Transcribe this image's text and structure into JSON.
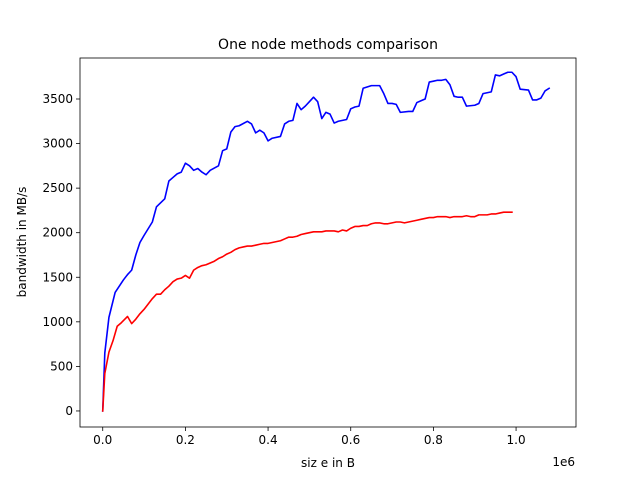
{
  "chart_data": {
    "type": "line",
    "title": "One node methods comparison",
    "xlabel": "siz e in B",
    "ylabel": "bandwidth in MB/s",
    "x_offset_text": "1e6",
    "xlim": [
      -0.055,
      1.145
    ],
    "ylim": [
      -180,
      3960
    ],
    "x_ticks": [
      0.0,
      0.2,
      0.4,
      0.6,
      0.8,
      1.0
    ],
    "x_tick_labels": [
      "0.0",
      "0.2",
      "0.4",
      "0.6",
      "0.8",
      "1.0"
    ],
    "y_ticks": [
      0,
      500,
      1000,
      1500,
      2000,
      2500,
      3000,
      3500
    ],
    "y_tick_labels": [
      "0",
      "500",
      "1000",
      "1500",
      "2000",
      "2500",
      "3000",
      "3500"
    ],
    "grid": false,
    "legend": "none",
    "series": [
      {
        "color": "#0000ff",
        "points": [
          [
            0.0,
            0
          ],
          [
            0.005,
            650
          ],
          [
            0.015,
            1050
          ],
          [
            0.03,
            1330
          ],
          [
            0.05,
            1470
          ],
          [
            0.06,
            1530
          ],
          [
            0.07,
            1580
          ],
          [
            0.08,
            1750
          ],
          [
            0.09,
            1890
          ],
          [
            0.1,
            1970
          ],
          [
            0.12,
            2120
          ],
          [
            0.13,
            2290
          ],
          [
            0.15,
            2380
          ],
          [
            0.16,
            2580
          ],
          [
            0.17,
            2620
          ],
          [
            0.18,
            2660
          ],
          [
            0.19,
            2680
          ],
          [
            0.2,
            2780
          ],
          [
            0.21,
            2750
          ],
          [
            0.22,
            2700
          ],
          [
            0.23,
            2720
          ],
          [
            0.24,
            2680
          ],
          [
            0.25,
            2650
          ],
          [
            0.26,
            2700
          ],
          [
            0.28,
            2750
          ],
          [
            0.29,
            2920
          ],
          [
            0.3,
            2940
          ],
          [
            0.31,
            3130
          ],
          [
            0.32,
            3190
          ],
          [
            0.33,
            3200
          ],
          [
            0.35,
            3250
          ],
          [
            0.36,
            3220
          ],
          [
            0.37,
            3120
          ],
          [
            0.38,
            3150
          ],
          [
            0.39,
            3120
          ],
          [
            0.4,
            3030
          ],
          [
            0.41,
            3060
          ],
          [
            0.43,
            3080
          ],
          [
            0.44,
            3220
          ],
          [
            0.45,
            3250
          ],
          [
            0.46,
            3260
          ],
          [
            0.47,
            3450
          ],
          [
            0.48,
            3380
          ],
          [
            0.49,
            3420
          ],
          [
            0.5,
            3470
          ],
          [
            0.51,
            3520
          ],
          [
            0.52,
            3470
          ],
          [
            0.53,
            3280
          ],
          [
            0.54,
            3350
          ],
          [
            0.55,
            3330
          ],
          [
            0.56,
            3230
          ],
          [
            0.57,
            3250
          ],
          [
            0.58,
            3260
          ],
          [
            0.59,
            3270
          ],
          [
            0.6,
            3390
          ],
          [
            0.61,
            3410
          ],
          [
            0.62,
            3420
          ],
          [
            0.63,
            3620
          ],
          [
            0.65,
            3650
          ],
          [
            0.67,
            3650
          ],
          [
            0.68,
            3560
          ],
          [
            0.69,
            3450
          ],
          [
            0.7,
            3450
          ],
          [
            0.71,
            3440
          ],
          [
            0.72,
            3350
          ],
          [
            0.74,
            3360
          ],
          [
            0.75,
            3360
          ],
          [
            0.76,
            3460
          ],
          [
            0.77,
            3480
          ],
          [
            0.78,
            3500
          ],
          [
            0.79,
            3690
          ],
          [
            0.8,
            3700
          ],
          [
            0.81,
            3710
          ],
          [
            0.82,
            3710
          ],
          [
            0.83,
            3720
          ],
          [
            0.84,
            3660
          ],
          [
            0.85,
            3530
          ],
          [
            0.86,
            3520
          ],
          [
            0.87,
            3520
          ],
          [
            0.88,
            3420
          ],
          [
            0.9,
            3430
          ],
          [
            0.91,
            3450
          ],
          [
            0.92,
            3560
          ],
          [
            0.93,
            3570
          ],
          [
            0.94,
            3580
          ],
          [
            0.95,
            3770
          ],
          [
            0.96,
            3760
          ],
          [
            0.97,
            3780
          ],
          [
            0.98,
            3800
          ],
          [
            0.99,
            3800
          ],
          [
            1.0,
            3750
          ],
          [
            1.01,
            3610
          ],
          [
            1.03,
            3600
          ],
          [
            1.04,
            3490
          ],
          [
            1.05,
            3490
          ],
          [
            1.06,
            3510
          ],
          [
            1.07,
            3590
          ],
          [
            1.08,
            3620
          ]
        ]
      },
      {
        "color": "#ff0000",
        "points": [
          [
            0.0,
            0
          ],
          [
            0.005,
            420
          ],
          [
            0.015,
            660
          ],
          [
            0.025,
            790
          ],
          [
            0.035,
            950
          ],
          [
            0.045,
            990
          ],
          [
            0.06,
            1060
          ],
          [
            0.07,
            980
          ],
          [
            0.08,
            1030
          ],
          [
            0.09,
            1090
          ],
          [
            0.1,
            1140
          ],
          [
            0.11,
            1200
          ],
          [
            0.12,
            1260
          ],
          [
            0.13,
            1310
          ],
          [
            0.14,
            1310
          ],
          [
            0.15,
            1360
          ],
          [
            0.16,
            1400
          ],
          [
            0.17,
            1450
          ],
          [
            0.18,
            1480
          ],
          [
            0.19,
            1490
          ],
          [
            0.2,
            1520
          ],
          [
            0.21,
            1490
          ],
          [
            0.22,
            1580
          ],
          [
            0.23,
            1610
          ],
          [
            0.24,
            1630
          ],
          [
            0.25,
            1640
          ],
          [
            0.26,
            1660
          ],
          [
            0.27,
            1680
          ],
          [
            0.28,
            1710
          ],
          [
            0.29,
            1730
          ],
          [
            0.3,
            1760
          ],
          [
            0.31,
            1780
          ],
          [
            0.32,
            1810
          ],
          [
            0.33,
            1830
          ],
          [
            0.34,
            1840
          ],
          [
            0.35,
            1850
          ],
          [
            0.36,
            1850
          ],
          [
            0.37,
            1860
          ],
          [
            0.38,
            1870
          ],
          [
            0.39,
            1880
          ],
          [
            0.4,
            1880
          ],
          [
            0.41,
            1890
          ],
          [
            0.42,
            1900
          ],
          [
            0.43,
            1910
          ],
          [
            0.44,
            1930
          ],
          [
            0.45,
            1950
          ],
          [
            0.46,
            1950
          ],
          [
            0.47,
            1960
          ],
          [
            0.48,
            1980
          ],
          [
            0.49,
            1990
          ],
          [
            0.5,
            2000
          ],
          [
            0.51,
            2010
          ],
          [
            0.52,
            2010
          ],
          [
            0.53,
            2010
          ],
          [
            0.54,
            2020
          ],
          [
            0.55,
            2020
          ],
          [
            0.56,
            2020
          ],
          [
            0.57,
            2010
          ],
          [
            0.58,
            2030
          ],
          [
            0.59,
            2020
          ],
          [
            0.6,
            2050
          ],
          [
            0.61,
            2070
          ],
          [
            0.62,
            2070
          ],
          [
            0.63,
            2080
          ],
          [
            0.64,
            2080
          ],
          [
            0.65,
            2100
          ],
          [
            0.66,
            2110
          ],
          [
            0.67,
            2110
          ],
          [
            0.68,
            2100
          ],
          [
            0.69,
            2100
          ],
          [
            0.7,
            2110
          ],
          [
            0.71,
            2120
          ],
          [
            0.72,
            2120
          ],
          [
            0.73,
            2110
          ],
          [
            0.74,
            2120
          ],
          [
            0.75,
            2130
          ],
          [
            0.76,
            2140
          ],
          [
            0.77,
            2150
          ],
          [
            0.78,
            2160
          ],
          [
            0.79,
            2170
          ],
          [
            0.8,
            2170
          ],
          [
            0.81,
            2180
          ],
          [
            0.82,
            2180
          ],
          [
            0.83,
            2180
          ],
          [
            0.84,
            2170
          ],
          [
            0.85,
            2180
          ],
          [
            0.86,
            2180
          ],
          [
            0.87,
            2180
          ],
          [
            0.88,
            2190
          ],
          [
            0.89,
            2180
          ],
          [
            0.9,
            2180
          ],
          [
            0.91,
            2200
          ],
          [
            0.92,
            2200
          ],
          [
            0.93,
            2200
          ],
          [
            0.94,
            2210
          ],
          [
            0.95,
            2210
          ],
          [
            0.96,
            2220
          ],
          [
            0.97,
            2230
          ],
          [
            0.98,
            2230
          ],
          [
            0.99,
            2230
          ]
        ]
      }
    ]
  }
}
